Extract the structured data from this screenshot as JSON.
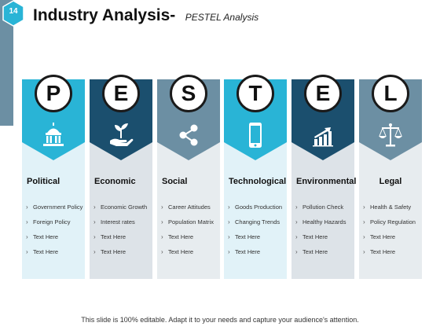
{
  "slide": {
    "number": "14",
    "title": "Industry Analysis-",
    "subtitle": "PESTEL Analysis",
    "footer": "This slide is 100% editable. Adapt it to your needs and capture your audience's attention.",
    "accent_color": "#6c8fa3"
  },
  "columns": [
    {
      "letter": "P",
      "title": "Political",
      "icon": "capitol-building-icon",
      "color": "#29b4d6",
      "panel_color": "#e1f2f8",
      "items": [
        "Government Policy",
        "Foreign Policy",
        "Text Here",
        "Text Here"
      ]
    },
    {
      "letter": "E",
      "title": "Economic",
      "icon": "hand-plant-icon",
      "color": "#1b4f6e",
      "panel_color": "#dde3e8",
      "items": [
        "Economic Growth",
        "Interest rates",
        "Text Here",
        "Text Here"
      ]
    },
    {
      "letter": "S",
      "title": "Social",
      "icon": "share-icon",
      "color": "#6c8fa3",
      "panel_color": "#e7ecef",
      "items": [
        "Career Attitudes",
        "Population Matrix",
        "Text Here",
        "Text Here"
      ]
    },
    {
      "letter": "T",
      "title": "Technological",
      "icon": "smartphone-icon",
      "color": "#29b4d6",
      "panel_color": "#e1f2f8",
      "items": [
        "Goods Production",
        "Changing Trends",
        "Text Here",
        "Text Here"
      ]
    },
    {
      "letter": "E",
      "title": "Environmental",
      "icon": "bar-chart-growth-icon",
      "color": "#1b4f6e",
      "panel_color": "#dde3e8",
      "items": [
        "Pollution Check",
        "Healthy Hazards",
        "Text Here",
        "Text Here"
      ]
    },
    {
      "letter": "L",
      "title": "Legal",
      "icon": "scales-of-justice-icon",
      "color": "#6c8fa3",
      "panel_color": "#e7ecef",
      "items": [
        "Health & Safety",
        "Policy Regulation",
        "Text Here",
        "Text Here"
      ]
    }
  ]
}
